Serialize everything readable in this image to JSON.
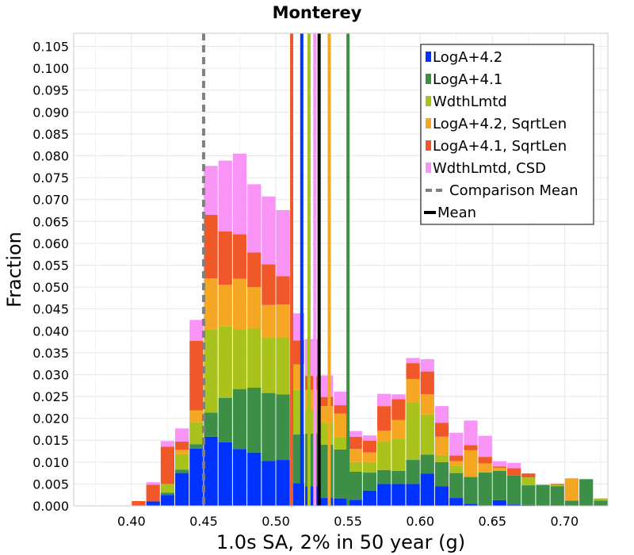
{
  "chart_data": {
    "type": "bar",
    "subtype": "stacked-histogram",
    "title": "Monterey",
    "xlabel": "1.0s SA, 2% in 50 year (g)",
    "ylabel": "Fraction",
    "xlim": [
      0.36,
      0.73
    ],
    "ylim": [
      0,
      0.108
    ],
    "xticks": [
      "0.40",
      "0.45",
      "0.50",
      "0.55",
      "0.60",
      "0.65",
      "0.70"
    ],
    "yticks": [
      "0.000",
      "0.005",
      "0.010",
      "0.015",
      "0.020",
      "0.025",
      "0.030",
      "0.035",
      "0.040",
      "0.045",
      "0.050",
      "0.055",
      "0.060",
      "0.065",
      "0.070",
      "0.075",
      "0.080",
      "0.085",
      "0.090",
      "0.095",
      "0.100",
      "0.105"
    ],
    "grid": true,
    "legend_position": "top-right",
    "bin_width": 0.01,
    "bin_centers": [
      0.385,
      0.395,
      0.405,
      0.415,
      0.425,
      0.435,
      0.445,
      0.455,
      0.465,
      0.475,
      0.485,
      0.495,
      0.505,
      0.515,
      0.525,
      0.535,
      0.545,
      0.555,
      0.565,
      0.575,
      0.585,
      0.595,
      0.605,
      0.615,
      0.625,
      0.635,
      0.645,
      0.655,
      0.665,
      0.675,
      0.685,
      0.695,
      0.705,
      0.715,
      0.725
    ],
    "series": [
      {
        "name": "LogA+4.2",
        "color": "#0033ff",
        "values": [
          0,
          0,
          0,
          0.001,
          0.0025,
          0.0075,
          0.0131,
          0.0158,
          0.0145,
          0.013,
          0.0122,
          0.0103,
          0.0105,
          0.0052,
          0.0045,
          0.0018,
          0.0017,
          0.0014,
          0.0035,
          0.005,
          0.005,
          0.005,
          0.0074,
          0.0045,
          0.0018,
          0.0005,
          0,
          0.0013,
          0.0003,
          0.0002,
          0,
          0,
          0,
          0,
          0
        ]
      },
      {
        "name": "LogA+4.1",
        "color": "#3d8f48",
        "values": [
          0,
          0,
          0,
          0,
          0.0005,
          0.0008,
          0.001,
          0.0055,
          0.0102,
          0.0137,
          0.0148,
          0.0155,
          0.015,
          0.0111,
          0.012,
          0.0122,
          0.0112,
          0.0064,
          0.0041,
          0.0032,
          0.003,
          0.0055,
          0.0043,
          0.0055,
          0.0057,
          0.0061,
          0.0076,
          0.0067,
          0.0066,
          0.0045,
          0.0048,
          0.0045,
          0.0012,
          0.0061,
          0.0012
        ]
      },
      {
        "name": "WdthLmtd",
        "color": "#a9c21c",
        "values": [
          0,
          0,
          0,
          0,
          0.002,
          0.0035,
          0.005,
          0.019,
          0.0163,
          0.0137,
          0.0135,
          0.0126,
          0.013,
          0.0102,
          0.0055,
          0.005,
          0.0028,
          0.0022,
          0.0024,
          0.0065,
          0.0073,
          0.0132,
          0.0092,
          0.0015,
          0.0017,
          0,
          0,
          0,
          0,
          0.0018,
          0,
          0.0003,
          0,
          0,
          0.0005
        ]
      },
      {
        "name": "LogA+4.2, SqrtLen",
        "color": "#f5a623",
        "values": [
          0,
          0,
          0,
          0,
          0,
          0.001,
          0.0027,
          0.0117,
          0.0095,
          0.0115,
          0.0095,
          0.0075,
          0.0075,
          0.0058,
          0.0045,
          0.0038,
          0.0054,
          0.003,
          0.0022,
          0.0025,
          0.0043,
          0.0053,
          0.0046,
          0.0043,
          0.001,
          0.0061,
          0.0021,
          0.0007,
          0,
          0,
          0,
          0,
          0.0051,
          0,
          0
        ]
      },
      {
        "name": "LogA+4.1, SqrtLen",
        "color": "#f0582a",
        "values": [
          0,
          0,
          0.0011,
          0.0038,
          0.0085,
          0.0019,
          0.0159,
          0.0145,
          0.0122,
          0.0102,
          0.0079,
          0.0093,
          0.0065,
          0.0055,
          0.0032,
          0.0021,
          0.0019,
          0.0028,
          0.0027,
          0.0056,
          0.0048,
          0.0036,
          0.0052,
          0.0032,
          0.0013,
          0.0012,
          0.0015,
          0.0003,
          0.0017,
          0.0009,
          0,
          0.0002,
          0,
          0,
          0
        ]
      },
      {
        "name": "WdthLmtd, CSD",
        "color": "#f993f6",
        "values": [
          0,
          0,
          0,
          0.0006,
          0.0013,
          0.003,
          0.0048,
          0.0112,
          0.0162,
          0.0184,
          0.0156,
          0.0155,
          0.0151,
          0.0062,
          0.0084,
          0.0049,
          0.0031,
          0.0013,
          0.0012,
          0.0028,
          0.0011,
          0.0012,
          0.0028,
          0.0038,
          0.0052,
          0.0056,
          0.0048,
          0.0012,
          0.0012,
          0,
          0,
          0,
          0,
          0,
          0
        ]
      }
    ],
    "vertical_lines": [
      {
        "series": "LogA+4.2",
        "x": 0.518,
        "color": "#0033ff",
        "style": "solid"
      },
      {
        "series": "LogA+4.1",
        "x": 0.55,
        "color": "#3d8f48",
        "style": "solid"
      },
      {
        "series": "WdthLmtd",
        "x": 0.523,
        "color": "#a9c21c",
        "style": "solid"
      },
      {
        "series": "LogA+4.2, SqrtLen",
        "x": 0.537,
        "color": "#f5a623",
        "style": "solid"
      },
      {
        "series": "LogA+4.1, SqrtLen",
        "x": 0.511,
        "color": "#f0582a",
        "style": "solid"
      },
      {
        "series": "WdthLmtd, CSD",
        "x": 0.527,
        "color": "#f993f6",
        "style": "solid"
      },
      {
        "series": "Comparison Mean",
        "x": 0.45,
        "color": "#808080",
        "style": "dashed"
      },
      {
        "series": "Mean",
        "x": 0.53,
        "color": "#000000",
        "style": "solid"
      }
    ],
    "legend": [
      {
        "label": "LogA+4.2",
        "color": "#0033ff",
        "kind": "box"
      },
      {
        "label": "LogA+4.1",
        "color": "#3d8f48",
        "kind": "box"
      },
      {
        "label": "WdthLmtd",
        "color": "#a9c21c",
        "kind": "box"
      },
      {
        "label": "LogA+4.2, SqrtLen",
        "color": "#f5a623",
        "kind": "box"
      },
      {
        "label": "LogA+4.1, SqrtLen",
        "color": "#f0582a",
        "kind": "box"
      },
      {
        "label": "WdthLmtd, CSD",
        "color": "#f993f6",
        "kind": "box"
      },
      {
        "label": "Comparison Mean",
        "color": "#808080",
        "kind": "dash"
      },
      {
        "label": "Mean",
        "color": "#000000",
        "kind": "line"
      }
    ]
  }
}
